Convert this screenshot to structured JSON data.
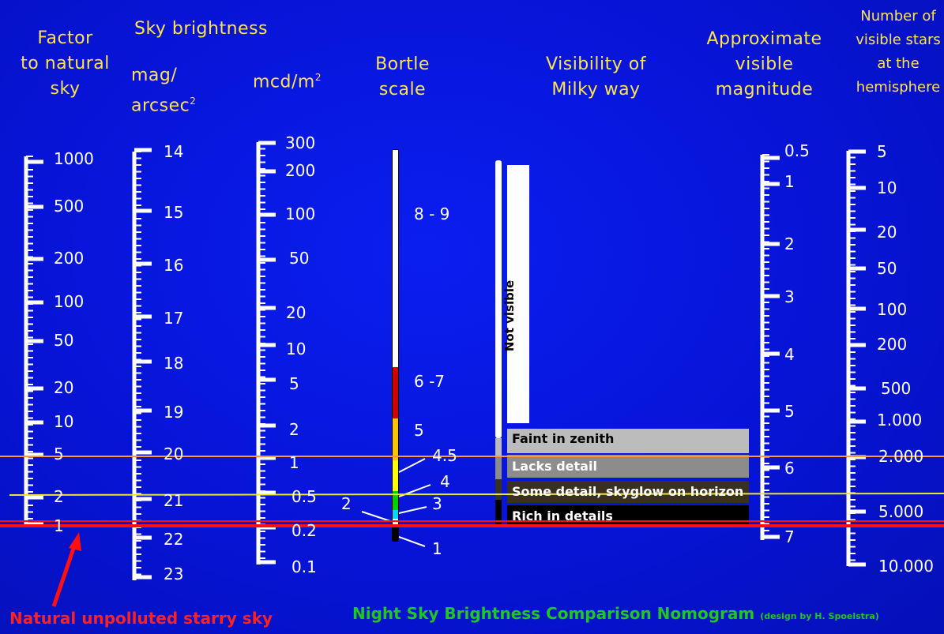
{
  "headers": {
    "factor": [
      "Factor",
      "to natural",
      "sky"
    ],
    "sky_brightness": "Sky brightness",
    "mag_line1": "mag/",
    "mag_line2": "arcsec",
    "mag_sup": "2",
    "mcd": "mcd/m",
    "mcd_sup": "2",
    "bortle": [
      "Bortle",
      "scale"
    ],
    "milky_way": [
      "Visibility of",
      "Milky way"
    ],
    "magnitude": [
      "Approximate",
      "visible",
      "magnitude"
    ],
    "stars": [
      "Number of",
      "visible stars",
      "at the",
      "hemisphere"
    ]
  },
  "scales": {
    "factor": [
      "1000",
      "500",
      "200",
      "100",
      "50",
      "20",
      "10",
      "5",
      "2",
      "1"
    ],
    "mag": [
      "14",
      "15",
      "16",
      "17",
      "18",
      "19",
      "20",
      "21",
      "22",
      "23"
    ],
    "mcd": [
      "300",
      "200",
      "100",
      "50",
      "20",
      "10",
      "5",
      "2",
      "1",
      "0.5",
      "0.2",
      "0.1"
    ],
    "magnitude": [
      "0.5",
      "1",
      "2",
      "3",
      "4",
      "5",
      "6",
      "7"
    ],
    "stars": [
      "5",
      "10",
      "20",
      "50",
      "100",
      "200",
      "500",
      "1.000",
      "2.000",
      "5.000",
      "10.000"
    ]
  },
  "bortle": {
    "labels": [
      "8 - 9",
      "6 -7",
      "5",
      "4.5",
      "4",
      "3",
      "2",
      "1"
    ],
    "colors": [
      "#ffffff",
      "#d40000",
      "#ffc400",
      "#ffff00",
      "#00d000",
      "#00d8ff",
      "#ffffff",
      "#000000"
    ]
  },
  "milky_way": {
    "not_visible": "Not visible",
    "bands": [
      "Faint in zenith",
      "Lacks detail",
      "Some detail, skyglow on horizon",
      "Rich in details"
    ],
    "band_colors": [
      "#bcbcbc",
      "#8c8c8c",
      "#3a3020",
      "#000000"
    ],
    "band_text_colors": [
      "#000000",
      "#ffffff",
      "#ffffff",
      "#ffffff"
    ]
  },
  "reference_lines": {
    "orange": "#ff9a40",
    "yellow": "#e8e830",
    "red": "#ff1010"
  },
  "captions": {
    "natural": "Natural unpolluted starry sky",
    "title": "Night Sky Brightness Comparison Nomogram",
    "credit": "(design by H. Spoelstra)"
  }
}
